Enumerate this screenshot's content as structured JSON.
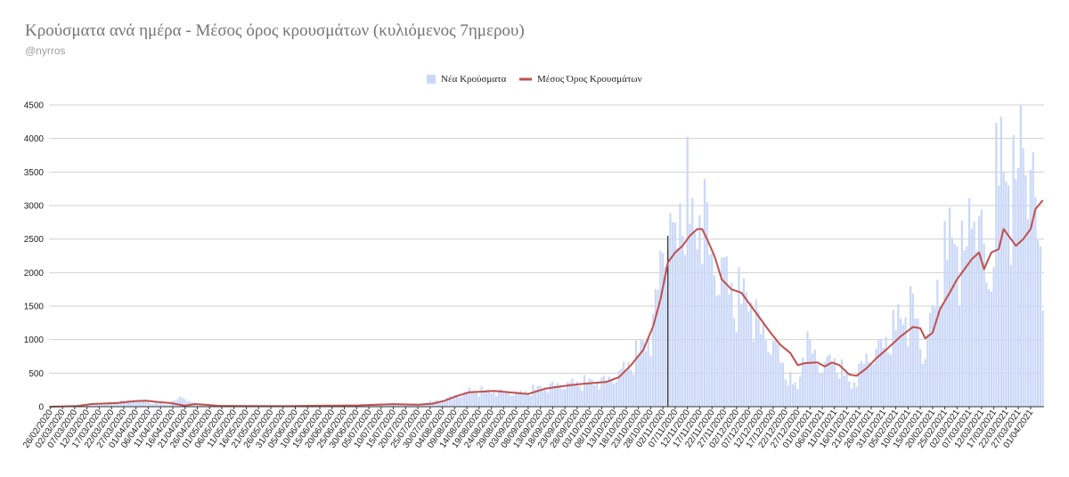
{
  "chart_data": {
    "type": "bar",
    "title": "Κρούσματα ανά ημέρα - Μέσος όρος κρουσμάτων (κυλιόμενος 7ημερου)",
    "subtitle": "@nyrros",
    "legend_position": "top-center",
    "ylim": [
      0,
      4500
    ],
    "y_ticks": [
      0,
      500,
      1000,
      1500,
      2000,
      2500,
      3000,
      3500,
      4000,
      4500
    ],
    "gridlines": true,
    "x_range": [
      "26/02/2020",
      "06/04/2021"
    ],
    "x_tick_labels": [
      "26/02/2020",
      "02/03/2020",
      "07/03/2020",
      "12/03/2020",
      "17/03/2020",
      "22/03/2020",
      "27/03/2020",
      "01/04/2020",
      "06/04/2020",
      "11/04/2020",
      "16/04/2020",
      "21/04/2020",
      "26/04/2020",
      "01/05/2020",
      "06/05/2020",
      "11/05/2020",
      "16/05/2020",
      "21/05/2020",
      "26/05/2020",
      "31/05/2020",
      "05/06/2020",
      "10/06/2020",
      "15/06/2020",
      "20/06/2020",
      "25/06/2020",
      "30/06/2020",
      "05/07/2020",
      "10/07/2020",
      "15/07/2020",
      "20/07/2020",
      "25/07/2020",
      "30/07/2020",
      "04/08/2020",
      "09/08/2020",
      "14/08/2020",
      "19/08/2020",
      "24/08/2020",
      "29/08/2020",
      "03/09/2020",
      "08/09/2020",
      "13/09/2020",
      "18/09/2020",
      "23/09/2020",
      "28/09/2020",
      "03/10/2020",
      "08/10/2020",
      "13/10/2020",
      "18/10/2020",
      "23/10/2020",
      "28/10/2020",
      "02/11/2020",
      "07/11/2020",
      "12/11/2020",
      "17/11/2020",
      "22/11/2020",
      "27/11/2020",
      "02/12/2020",
      "07/12/2020",
      "12/12/2020",
      "17/12/2020",
      "22/12/2020",
      "27/12/2020",
      "01/01/2021",
      "06/01/2021",
      "11/01/2021",
      "16/01/2021",
      "21/01/2021",
      "26/01/2021",
      "31/01/2021",
      "05/02/2021",
      "10/02/2021",
      "15/02/2021",
      "20/02/2021",
      "25/02/2021",
      "02/03/2021",
      "07/03/2021",
      "12/03/2021",
      "17/03/2021",
      "22/03/2021",
      "27/03/2021",
      "01/04/2021"
    ],
    "series": [
      {
        "name": "Νέα Κρούσματα",
        "type": "bar",
        "color": "#c9d7f8",
        "values_format": "[date, cases] anchor points, linear daily interpolation with weekly fluctuation",
        "anchors": [
          [
            "26/02/2020",
            0
          ],
          [
            "10/03/2020",
            25
          ],
          [
            "20/03/2020",
            60
          ],
          [
            "01/04/2020",
            95
          ],
          [
            "05/04/2020",
            70
          ],
          [
            "14/04/2020",
            30
          ],
          [
            "20/04/2020",
            150
          ],
          [
            "25/04/2020",
            30
          ],
          [
            "10/05/2020",
            10
          ],
          [
            "15/06/2020",
            15
          ],
          [
            "01/07/2020",
            20
          ],
          [
            "15/07/2020",
            40
          ],
          [
            "25/07/2020",
            35
          ],
          [
            "05/08/2020",
            110
          ],
          [
            "15/08/2020",
            230
          ],
          [
            "25/08/2020",
            230
          ],
          [
            "05/09/2020",
            200
          ],
          [
            "15/09/2020",
            300
          ],
          [
            "25/09/2020",
            340
          ],
          [
            "05/10/2020",
            370
          ],
          [
            "12/10/2020",
            400
          ],
          [
            "20/10/2020",
            650
          ],
          [
            "26/10/2020",
            950
          ],
          [
            "29/10/2020",
            1200
          ],
          [
            "01/11/2020",
            2050
          ],
          [
            "04/11/2020",
            2900
          ],
          [
            "07/11/2020",
            2300
          ],
          [
            "11/11/2020",
            3300
          ],
          [
            "15/11/2020",
            2400
          ],
          [
            "18/11/2020",
            3200
          ],
          [
            "22/11/2020",
            2000
          ],
          [
            "26/11/2020",
            2100
          ],
          [
            "01/12/2020",
            1600
          ],
          [
            "08/12/2020",
            1600
          ],
          [
            "12/12/2020",
            1100
          ],
          [
            "18/12/2020",
            900
          ],
          [
            "22/12/2020",
            500
          ],
          [
            "27/12/2020",
            250
          ],
          [
            "30/12/2020",
            1000
          ],
          [
            "05/01/2021",
            600
          ],
          [
            "10/01/2021",
            700
          ],
          [
            "14/01/2021",
            550
          ],
          [
            "18/01/2021",
            300
          ],
          [
            "22/01/2021",
            600
          ],
          [
            "27/01/2021",
            800
          ],
          [
            "01/02/2021",
            950
          ],
          [
            "05/02/2021",
            1200
          ],
          [
            "12/02/2021",
            1500
          ],
          [
            "16/02/2021",
            750
          ],
          [
            "20/02/2021",
            1350
          ],
          [
            "24/02/2021",
            2100
          ],
          [
            "01/03/2021",
            2600
          ],
          [
            "05/03/2021",
            2100
          ],
          [
            "09/03/2021",
            3200
          ],
          [
            "12/03/2021",
            2500
          ],
          [
            "15/03/2021",
            1600
          ],
          [
            "18/03/2021",
            3400
          ],
          [
            "22/03/2021",
            3550
          ],
          [
            "26/03/2021",
            3100
          ],
          [
            "29/03/2021",
            4300
          ],
          [
            "31/03/2021",
            3600
          ],
          [
            "02/04/2021",
            3200
          ],
          [
            "06/04/2021",
            1850
          ]
        ]
      },
      {
        "name": "Μέσος Όρος Κρουσμάτων",
        "type": "line",
        "color": "#c0504d",
        "values_format": "[date, 7-day moving average]",
        "points": [
          [
            "26/02/2020",
            0
          ],
          [
            "08/03/2020",
            10
          ],
          [
            "14/03/2020",
            40
          ],
          [
            "24/03/2020",
            55
          ],
          [
            "01/04/2020",
            85
          ],
          [
            "05/04/2020",
            90
          ],
          [
            "10/04/2020",
            70
          ],
          [
            "15/04/2020",
            55
          ],
          [
            "21/04/2020",
            15
          ],
          [
            "25/04/2020",
            40
          ],
          [
            "29/04/2020",
            30
          ],
          [
            "05/05/2020",
            12
          ],
          [
            "01/06/2020",
            8
          ],
          [
            "15/06/2020",
            15
          ],
          [
            "01/07/2020",
            20
          ],
          [
            "15/07/2020",
            38
          ],
          [
            "25/07/2020",
            30
          ],
          [
            "31/07/2020",
            45
          ],
          [
            "05/08/2020",
            90
          ],
          [
            "10/08/2020",
            160
          ],
          [
            "15/08/2020",
            215
          ],
          [
            "20/08/2020",
            225
          ],
          [
            "25/08/2020",
            235
          ],
          [
            "31/08/2020",
            215
          ],
          [
            "08/09/2020",
            190
          ],
          [
            "15/09/2020",
            270
          ],
          [
            "20/09/2020",
            295
          ],
          [
            "25/09/2020",
            320
          ],
          [
            "30/09/2020",
            340
          ],
          [
            "05/10/2020",
            355
          ],
          [
            "10/10/2020",
            370
          ],
          [
            "15/10/2020",
            440
          ],
          [
            "20/10/2020",
            620
          ],
          [
            "25/10/2020",
            850
          ],
          [
            "29/10/2020",
            1200
          ],
          [
            "01/11/2020",
            1600
          ],
          [
            "04/11/2020",
            2150
          ],
          [
            "07/11/2020",
            2300
          ],
          [
            "10/11/2020",
            2400
          ],
          [
            "13/11/2020",
            2550
          ],
          [
            "16/11/2020",
            2650
          ],
          [
            "18/11/2020",
            2650
          ],
          [
            "20/11/2020",
            2500
          ],
          [
            "23/11/2020",
            2250
          ],
          [
            "26/11/2020",
            1900
          ],
          [
            "30/11/2020",
            1750
          ],
          [
            "04/12/2020",
            1700
          ],
          [
            "08/12/2020",
            1500
          ],
          [
            "12/12/2020",
            1300
          ],
          [
            "16/12/2020",
            1100
          ],
          [
            "20/12/2020",
            920
          ],
          [
            "24/12/2020",
            800
          ],
          [
            "27/12/2020",
            620
          ],
          [
            "30/12/2020",
            650
          ],
          [
            "04/01/2021",
            660
          ],
          [
            "07/01/2021",
            600
          ],
          [
            "10/01/2021",
            660
          ],
          [
            "13/01/2021",
            620
          ],
          [
            "17/01/2021",
            480
          ],
          [
            "20/01/2021",
            460
          ],
          [
            "24/01/2021",
            570
          ],
          [
            "28/01/2021",
            720
          ],
          [
            "02/02/2021",
            880
          ],
          [
            "07/02/2021",
            1050
          ],
          [
            "12/02/2021",
            1190
          ],
          [
            "15/02/2021",
            1170
          ],
          [
            "17/02/2021",
            1020
          ],
          [
            "20/02/2021",
            1100
          ],
          [
            "23/02/2021",
            1450
          ],
          [
            "27/02/2021",
            1700
          ],
          [
            "02/03/2021",
            1900
          ],
          [
            "05/03/2021",
            2050
          ],
          [
            "08/03/2021",
            2200
          ],
          [
            "11/03/2021",
            2300
          ],
          [
            "13/03/2021",
            2050
          ],
          [
            "16/03/2021",
            2300
          ],
          [
            "19/03/2021",
            2350
          ],
          [
            "21/03/2021",
            2650
          ],
          [
            "24/03/2021",
            2500
          ],
          [
            "26/03/2021",
            2400
          ],
          [
            "29/03/2021",
            2500
          ],
          [
            "01/04/2021",
            2650
          ],
          [
            "03/04/2021",
            2950
          ],
          [
            "06/04/2021",
            3080
          ]
        ]
      }
    ],
    "annotations": [
      {
        "type": "vertical-line",
        "x": "04/11/2020",
        "y_top": 2550,
        "color": "#333333"
      }
    ]
  }
}
